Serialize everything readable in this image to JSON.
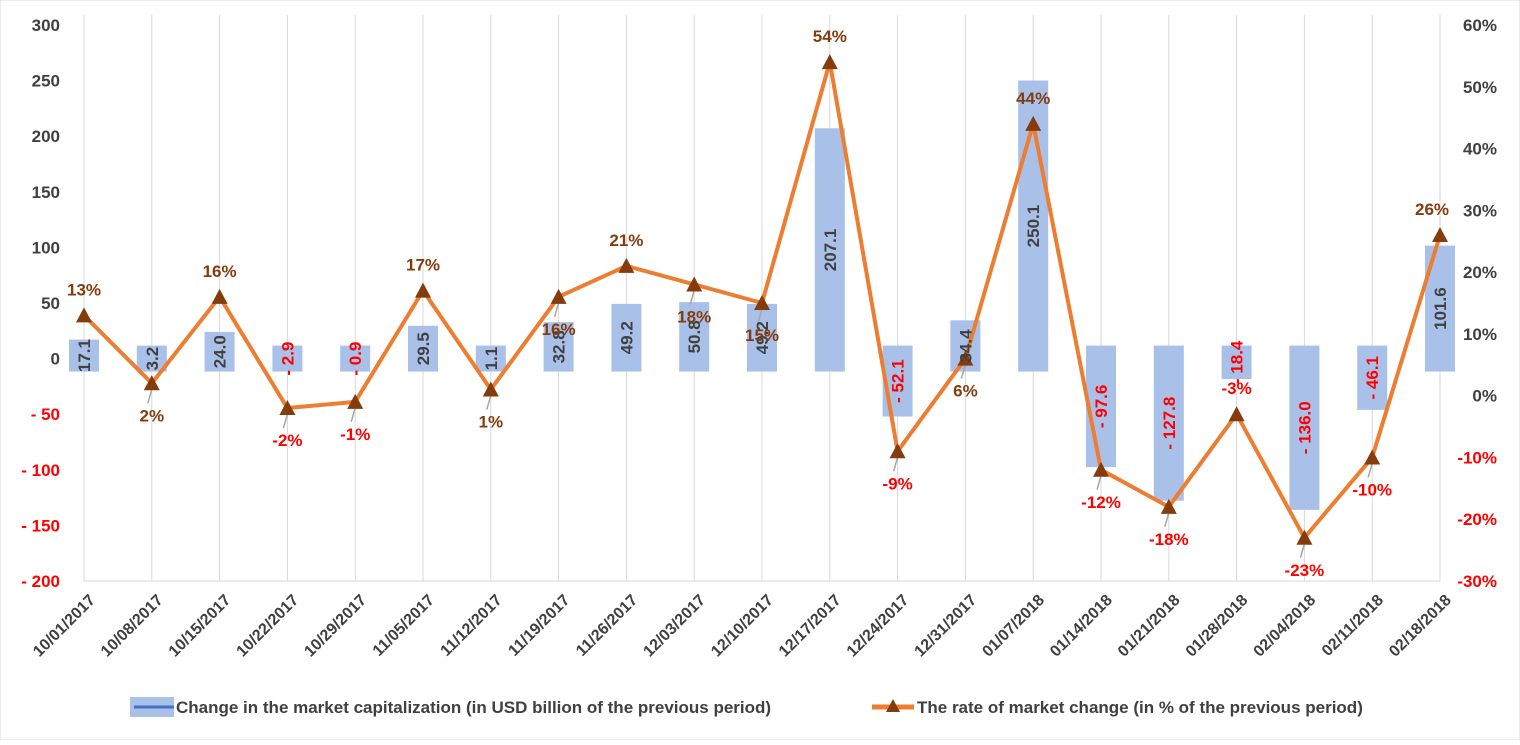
{
  "chart_data": {
    "type": "bar",
    "categories": [
      "10/01/2017",
      "10/08/2017",
      "10/15/2017",
      "10/22/2017",
      "10/29/2017",
      "11/05/2017",
      "11/12/2017",
      "11/19/2017",
      "11/26/2017",
      "12/03/2017",
      "12/10/2017",
      "12/17/2017",
      "12/24/2017",
      "12/31/2017",
      "01/07/2018",
      "01/14/2018",
      "01/21/2018",
      "01/28/2018",
      "02/04/2018",
      "02/11/2018",
      "02/18/2018"
    ],
    "series": [
      {
        "name": "Change in the market capitalization  (in USD billion of the previous period)",
        "type": "bar",
        "axis": "left",
        "values": [
          17.1,
          3.2,
          24.0,
          -2.9,
          -0.9,
          29.5,
          1.1,
          32.8,
          49.2,
          50.8,
          49.2,
          207.1,
          -52.1,
          34.4,
          250.1,
          -97.6,
          -127.8,
          -18.4,
          -136.0,
          -46.1,
          101.6
        ],
        "labels": [
          "17.1",
          "3.2",
          "24.0",
          "- 2.9",
          "- 0.9",
          "29.5",
          "1.1",
          "32.8",
          "49.2",
          "50.8",
          "49.2",
          "207.1",
          "- 52.1",
          "34.4",
          "250.1",
          "- 97.6",
          "- 127.8",
          "- 18.4",
          "- 136.0",
          "- 46.1",
          "101.6"
        ],
        "color": "#a9c0e8"
      },
      {
        "name": "The rate of market change (in % of the previous period)",
        "type": "line",
        "axis": "right",
        "values": [
          13,
          2,
          16,
          -2,
          -1,
          17,
          1,
          16,
          21,
          18,
          15,
          54,
          -9,
          6,
          44,
          -12,
          -18,
          -3,
          -23,
          -10,
          26
        ],
        "labels": [
          "13%",
          "2%",
          "16%",
          "-2%",
          "-1%",
          "17%",
          "1%",
          "16%",
          "21%",
          "18%",
          "15%",
          "54%",
          "-9%",
          "6%",
          "44%",
          "-12%",
          "-18%",
          "-3%",
          "-23%",
          "-10%",
          "26%"
        ],
        "color": "#ed7d31",
        "marker_color": "#843c0c"
      }
    ],
    "left_axis": {
      "ylim": [
        -200,
        300
      ],
      "ticks": [
        300,
        250,
        200,
        150,
        100,
        50,
        0,
        -50,
        -100,
        -150,
        -200
      ],
      "tick_labels": [
        "300",
        "250",
        "200",
        "150",
        "100",
        "50",
        "0",
        "- 50",
        "- 100",
        "- 150",
        "- 200"
      ]
    },
    "right_axis": {
      "ylim": [
        -30,
        60
      ],
      "ticks": [
        60,
        50,
        40,
        30,
        20,
        10,
        0,
        -10,
        -20,
        -30
      ],
      "tick_labels": [
        "60%",
        "50%",
        "40%",
        "30%",
        "20%",
        "10%",
        "0%",
        "-10%",
        "-20%",
        "-30%"
      ]
    },
    "grid": "vertical",
    "legend_position": "bottom",
    "colors": {
      "positive_text": "#404040",
      "negative_text": "#ff0000",
      "positive_pct_text": "#843c0c",
      "negative_pct_text": "#ff0000",
      "grid": "#d9d9d9",
      "legend_bar_line": "#4472c4"
    }
  }
}
